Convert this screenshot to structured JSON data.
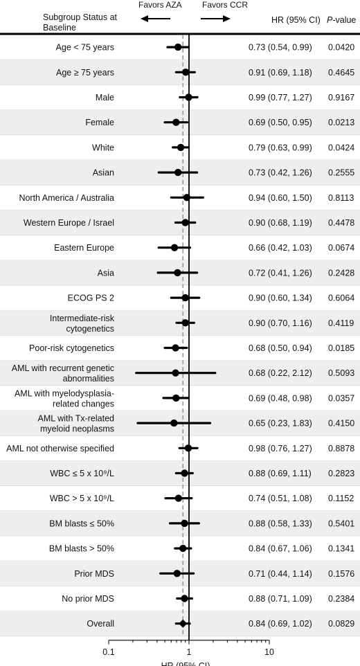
{
  "header": {
    "subgroup_title": "Subgroup Status at Baseline",
    "favors_left": "Favors AZA",
    "favors_right": "Favors CCR",
    "hr_col": "HR (95% CI)",
    "p_col_italic": "P",
    "p_col_rest": "-value"
  },
  "colors": {
    "band": "#eeeeee",
    "marker": "#000000",
    "dashed_line": "#9a9a9a"
  },
  "chart_data": {
    "type": "forest",
    "xlabel": "HR (95% CI)",
    "x_scale": "log",
    "xlim": [
      0.1,
      10
    ],
    "xticks": [
      "0.1",
      "1",
      "10"
    ],
    "reference_line": 1,
    "overall_dashed_line": 0.84,
    "rows": [
      {
        "label": "Age < 75 years",
        "hr": 0.73,
        "lo": 0.54,
        "hi": 0.99,
        "ci_text": "0.73 (0.54, 0.99)",
        "p": "0.0420"
      },
      {
        "label": "Age ≥ 75 years",
        "hr": 0.91,
        "lo": 0.69,
        "hi": 1.18,
        "ci_text": "0.91 (0.69, 1.18)",
        "p": "0.4645"
      },
      {
        "label": "Male",
        "hr": 0.99,
        "lo": 0.77,
        "hi": 1.27,
        "ci_text": "0.99 (0.77, 1.27)",
        "p": "0.9167"
      },
      {
        "label": "Female",
        "hr": 0.69,
        "lo": 0.5,
        "hi": 0.95,
        "ci_text": "0.69 (0.50, 0.95)",
        "p": "0.0213"
      },
      {
        "label": "White",
        "hr": 0.79,
        "lo": 0.63,
        "hi": 0.99,
        "ci_text": "0.79 (0.63, 0.99)",
        "p": "0.0424"
      },
      {
        "label": "Asian",
        "hr": 0.73,
        "lo": 0.42,
        "hi": 1.26,
        "ci_text": "0.73 (0.42, 1.26)",
        "p": "0.2555"
      },
      {
        "label": "North America / Australia",
        "hr": 0.94,
        "lo": 0.6,
        "hi": 1.5,
        "ci_text": "0.94 (0.60, 1.50)",
        "p": "0.8113"
      },
      {
        "label": "Western Europe / Israel",
        "hr": 0.9,
        "lo": 0.68,
        "hi": 1.19,
        "ci_text": "0.90 (0.68, 1.19)",
        "p": "0.4478"
      },
      {
        "label": "Eastern Europe",
        "hr": 0.66,
        "lo": 0.42,
        "hi": 1.03,
        "ci_text": "0.66 (0.42, 1.03)",
        "p": "0.0674"
      },
      {
        "label": "Asia",
        "hr": 0.72,
        "lo": 0.41,
        "hi": 1.26,
        "ci_text": "0.72 (0.41, 1.26)",
        "p": "0.2428"
      },
      {
        "label": "ECOG PS 2",
        "hr": 0.9,
        "lo": 0.6,
        "hi": 1.34,
        "ci_text": "0.90 (0.60, 1.34)",
        "p": "0.6064"
      },
      {
        "label": "Intermediate-risk cytogenetics",
        "lines": [
          "Intermediate-risk",
          "cytogenetics"
        ],
        "hr": 0.9,
        "lo": 0.7,
        "hi": 1.16,
        "ci_text": "0.90 (0.70, 1.16)",
        "p": "0.4119"
      },
      {
        "label": "Poor-risk cytogenetics",
        "hr": 0.68,
        "lo": 0.5,
        "hi": 0.94,
        "ci_text": "0.68 (0.50, 0.94)",
        "p": "0.0185"
      },
      {
        "label": "AML with recurrent genetic abnormalities",
        "lines": [
          "AML with recurrent genetic",
          "abnormalities"
        ],
        "hr": 0.68,
        "lo": 0.22,
        "hi": 2.12,
        "ci_text": "0.68 (0.22, 2.12)",
        "p": "0.5093"
      },
      {
        "label": "AML with myelodysplasia-related changes",
        "lines": [
          "AML with myelodysplasia-",
          "related changes"
        ],
        "hr": 0.69,
        "lo": 0.48,
        "hi": 0.98,
        "ci_text": "0.69 (0.48, 0.98)",
        "p": "0.0357"
      },
      {
        "label": "AML with Tx-related myeloid neoplasms",
        "lines": [
          "AML with Tx-related",
          "myeloid neoplasms"
        ],
        "hr": 0.65,
        "lo": 0.23,
        "hi": 1.83,
        "ci_text": "0.65 (0.23, 1.83)",
        "p": "0.4150"
      },
      {
        "label": "AML not otherwise specified",
        "hr": 0.98,
        "lo": 0.76,
        "hi": 1.27,
        "ci_text": "0.98 (0.76, 1.27)",
        "p": "0.8878"
      },
      {
        "label": "WBC ≤ 5 x 10⁹/L",
        "hr": 0.88,
        "lo": 0.69,
        "hi": 1.11,
        "ci_text": "0.88 (0.69, 1.11)",
        "p": "0.2823"
      },
      {
        "label": "WBC > 5 x 10⁹/L",
        "hr": 0.74,
        "lo": 0.51,
        "hi": 1.08,
        "ci_text": "0.74 (0.51, 1.08)",
        "p": "0.1152"
      },
      {
        "label": "BM blasts ≤ 50%",
        "hr": 0.88,
        "lo": 0.58,
        "hi": 1.33,
        "ci_text": "0.88 (0.58, 1.33)",
        "p": "0.5401"
      },
      {
        "label": "BM blasts > 50%",
        "hr": 0.84,
        "lo": 0.67,
        "hi": 1.06,
        "ci_text": "0.84 (0.67, 1.06)",
        "p": "0.1341"
      },
      {
        "label": "Prior MDS",
        "hr": 0.71,
        "lo": 0.44,
        "hi": 1.14,
        "ci_text": "0.71 (0.44, 1.14)",
        "p": "0.1576"
      },
      {
        "label": "No prior MDS",
        "hr": 0.88,
        "lo": 0.71,
        "hi": 1.09,
        "ci_text": "0.88 (0.71, 1.09)",
        "p": "0.2384"
      },
      {
        "label": "Overall",
        "hr": 0.84,
        "lo": 0.69,
        "hi": 1.02,
        "ci_text": "0.84 (0.69, 1.02)",
        "p": "0.0829",
        "marker": "diamond"
      }
    ]
  }
}
